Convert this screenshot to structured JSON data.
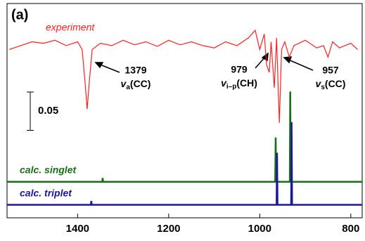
{
  "chart_data": {
    "type": "line",
    "panel_label": "(a)",
    "xlim": [
      1555,
      775
    ],
    "xticks": [
      1400,
      1200,
      1000,
      800
    ],
    "ylim": [
      0,
      0.28
    ],
    "scale_bar": 0.05,
    "series": [
      {
        "name": "experiment",
        "color": "#ff2020",
        "x": [
          1550,
          1525,
          1500,
          1475,
          1450,
          1425,
          1400,
          1390,
          1384,
          1379,
          1374,
          1368,
          1350,
          1325,
          1300,
          1275,
          1250,
          1225,
          1200,
          1175,
          1150,
          1125,
          1100,
          1075,
          1050,
          1025,
          1010,
          1000,
          990,
          985,
          979,
          975,
          968,
          963,
          957,
          952,
          945,
          935,
          925,
          900,
          875,
          860,
          850,
          840,
          825,
          800,
          785
        ],
        "values": [
          0.22,
          0.225,
          0.23,
          0.228,
          0.232,
          0.225,
          0.23,
          0.22,
          0.18,
          0.142,
          0.18,
          0.22,
          0.228,
          0.225,
          0.232,
          0.226,
          0.23,
          0.224,
          0.232,
          0.226,
          0.23,
          0.225,
          0.222,
          0.23,
          0.225,
          0.235,
          0.245,
          0.22,
          0.24,
          0.2,
          0.19,
          0.23,
          0.17,
          0.235,
          0.124,
          0.22,
          0.23,
          0.21,
          0.225,
          0.232,
          0.222,
          0.225,
          0.21,
          0.23,
          0.222,
          0.228,
          0.22
        ]
      },
      {
        "name": "calc. singlet",
        "color": "#1a6e1a",
        "x": [
          1555,
          1346,
          1345,
          1344,
          966,
          965,
          964,
          934,
          933,
          932,
          775
        ],
        "values": [
          0.047,
          0.047,
          0.052,
          0.047,
          0.047,
          0.105,
          0.047,
          0.047,
          0.165,
          0.047,
          0.047
        ]
      },
      {
        "name": "calc. triplet",
        "color": "#1a1a99",
        "x": [
          1555,
          1371,
          1370,
          1369,
          963,
          962,
          961,
          931,
          930,
          929,
          775
        ],
        "values": [
          0.017,
          0.017,
          0.022,
          0.017,
          0.017,
          0.085,
          0.017,
          0.017,
          0.125,
          0.017,
          0.017
        ]
      }
    ],
    "annotations": [
      {
        "number": "1379",
        "symbol": "v",
        "sub": "a",
        "suffix": "(CC)"
      },
      {
        "number": "979",
        "symbol": "v",
        "sub": "i–p",
        "suffix": "(CH)"
      },
      {
        "number": "957",
        "symbol": "v",
        "sub": "s",
        "suffix": "(CC)"
      }
    ]
  }
}
